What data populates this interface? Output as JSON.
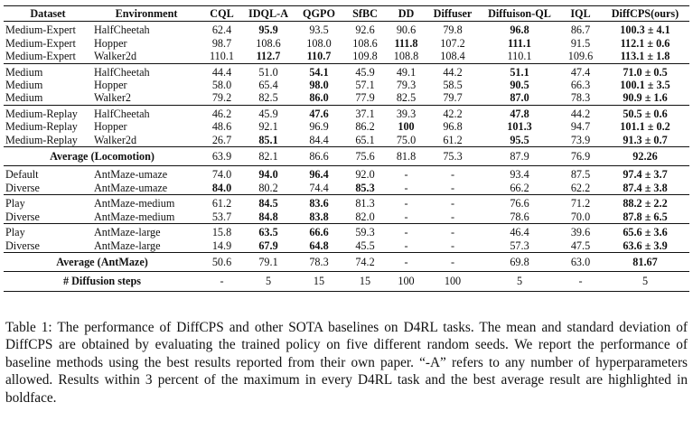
{
  "table": {
    "columns": [
      "Dataset",
      "Environment",
      "CQL",
      "IDQL-A",
      "QGPO",
      "SfBC",
      "DD",
      "Diffuser",
      "Diffuison-QL",
      "IQL",
      "DiffCPS(ours)"
    ],
    "rows": [
      {
        "dataset": "Medium-Expert",
        "env": "HalfCheetah",
        "cells": [
          "62.4",
          "95.9",
          "93.5",
          "92.6",
          "90.6",
          "79.8",
          "96.8",
          "86.7",
          "100.3 ± 4.1"
        ],
        "bold": [
          false,
          true,
          false,
          false,
          false,
          false,
          true,
          false,
          true
        ],
        "cls": "gap-top"
      },
      {
        "dataset": "Medium-Expert",
        "env": "Hopper",
        "cells": [
          "98.7",
          "108.6",
          "108.0",
          "108.6",
          "111.8",
          "107.2",
          "111.1",
          "91.5",
          "112.1 ± 0.6"
        ],
        "bold": [
          false,
          false,
          false,
          false,
          true,
          false,
          true,
          false,
          true
        ],
        "cls": ""
      },
      {
        "dataset": "Medium-Expert",
        "env": "Walker2d",
        "cells": [
          "110.1",
          "112.7",
          "110.7",
          "109.8",
          "108.8",
          "108.4",
          "110.1",
          "109.6",
          "113.1 ± 1.8"
        ],
        "bold": [
          false,
          true,
          true,
          false,
          false,
          false,
          false,
          false,
          true
        ],
        "cls": "sep"
      },
      {
        "dataset": "Medium",
        "env": "HalfCheetah",
        "cells": [
          "44.4",
          "51.0",
          "54.1",
          "45.9",
          "49.1",
          "44.2",
          "51.1",
          "47.4",
          "71.0 ± 0.5"
        ],
        "bold": [
          false,
          false,
          true,
          false,
          false,
          false,
          true,
          false,
          true
        ],
        "cls": "gap-top"
      },
      {
        "dataset": "Medium",
        "env": "Hopper",
        "cells": [
          "58.0",
          "65.4",
          "98.0",
          "57.1",
          "79.3",
          "58.5",
          "90.5",
          "66.3",
          "100.1 ± 3.5"
        ],
        "bold": [
          false,
          false,
          true,
          false,
          false,
          false,
          true,
          false,
          true
        ],
        "cls": ""
      },
      {
        "dataset": "Medium",
        "env": "Walker2",
        "cells": [
          "79.2",
          "82.5",
          "86.0",
          "77.9",
          "82.5",
          "79.7",
          "87.0",
          "78.3",
          "90.9 ± 1.6"
        ],
        "bold": [
          false,
          false,
          true,
          false,
          false,
          false,
          true,
          false,
          true
        ],
        "cls": "sep"
      },
      {
        "dataset": "Medium-Replay",
        "env": "HalfCheetah",
        "cells": [
          "46.2",
          "45.9",
          "47.6",
          "37.1",
          "39.3",
          "42.2",
          "47.8",
          "44.2",
          "50.5 ± 0.6"
        ],
        "bold": [
          false,
          false,
          true,
          false,
          false,
          false,
          true,
          false,
          true
        ],
        "cls": "gap-top"
      },
      {
        "dataset": "Medium-Replay",
        "env": "Hopper",
        "cells": [
          "48.6",
          "92.1",
          "96.9",
          "86.2",
          "100",
          "96.8",
          "101.3",
          "94.7",
          "101.1 ± 0.2"
        ],
        "bold": [
          false,
          false,
          false,
          false,
          true,
          false,
          true,
          false,
          true
        ],
        "cls": ""
      },
      {
        "dataset": "Medium-Replay",
        "env": "Walker2d",
        "cells": [
          "26.7",
          "85.1",
          "84.4",
          "65.1",
          "75.0",
          "61.2",
          "95.5",
          "73.9",
          "91.3 ± 0.7"
        ],
        "bold": [
          false,
          true,
          false,
          false,
          false,
          false,
          true,
          false,
          true
        ],
        "cls": "sep"
      }
    ],
    "avg_locomotion": {
      "label": "Average (Locomotion)",
      "cells": [
        "63.9",
        "82.1",
        "86.6",
        "75.6",
        "81.8",
        "75.3",
        "87.9",
        "76.9",
        "92.26"
      ],
      "bold": [
        false,
        false,
        false,
        false,
        false,
        false,
        false,
        false,
        true
      ]
    },
    "antmaze_rows": [
      {
        "dataset": "Default",
        "env": "AntMaze-umaze",
        "cells": [
          "74.0",
          "94.0",
          "96.4",
          "92.0",
          "-",
          "-",
          "93.4",
          "87.5",
          "97.4 ± 3.7"
        ],
        "bold": [
          false,
          true,
          true,
          false,
          false,
          false,
          false,
          false,
          true
        ],
        "cls": "gap-top"
      },
      {
        "dataset": "Diverse",
        "env": "AntMaze-umaze",
        "cells": [
          "84.0",
          "80.2",
          "74.4",
          "85.3",
          "-",
          "-",
          "66.2",
          "62.2",
          "87.4 ± 3.8"
        ],
        "bold": [
          true,
          false,
          false,
          true,
          false,
          false,
          false,
          false,
          true
        ],
        "cls": "sep"
      },
      {
        "dataset": "Play",
        "env": "AntMaze-medium",
        "cells": [
          "61.2",
          "84.5",
          "83.6",
          "81.3",
          "-",
          "-",
          "76.6",
          "71.2",
          "88.2 ± 2.2"
        ],
        "bold": [
          false,
          true,
          true,
          false,
          false,
          false,
          false,
          false,
          true
        ],
        "cls": "gap-top"
      },
      {
        "dataset": "Diverse",
        "env": "AntMaze-medium",
        "cells": [
          "53.7",
          "84.8",
          "83.8",
          "82.0",
          "-",
          "-",
          "78.6",
          "70.0",
          "87.8 ± 6.5"
        ],
        "bold": [
          false,
          true,
          true,
          false,
          false,
          false,
          false,
          false,
          true
        ],
        "cls": "sep"
      },
      {
        "dataset": "Play",
        "env": "AntMaze-large",
        "cells": [
          "15.8",
          "63.5",
          "66.6",
          "59.3",
          "-",
          "-",
          "46.4",
          "39.6",
          "65.6 ± 3.6"
        ],
        "bold": [
          false,
          true,
          true,
          false,
          false,
          false,
          false,
          false,
          true
        ],
        "cls": "gap-top"
      },
      {
        "dataset": "Diverse",
        "env": "AntMaze-large",
        "cells": [
          "14.9",
          "67.9",
          "64.8",
          "45.5",
          "-",
          "-",
          "57.3",
          "47.5",
          "63.6 ± 3.9"
        ],
        "bold": [
          false,
          true,
          true,
          false,
          false,
          false,
          false,
          false,
          true
        ],
        "cls": "sep"
      }
    ],
    "avg_antmaze": {
      "label": "Average (AntMaze)",
      "cells": [
        "50.6",
        "79.1",
        "78.3",
        "74.2",
        "-",
        "-",
        "69.8",
        "63.0",
        "81.67"
      ],
      "bold": [
        false,
        false,
        false,
        false,
        false,
        false,
        false,
        false,
        true
      ]
    },
    "steps": {
      "label": "# Diffusion steps",
      "cells": [
        "-",
        "5",
        "15",
        "15",
        "100",
        "100",
        "5",
        "-",
        "5"
      ],
      "bold": [
        false,
        false,
        false,
        false,
        false,
        false,
        false,
        false,
        false
      ]
    }
  },
  "caption": "Table 1: The performance of DiffCPS and other SOTA baselines on D4RL tasks. The mean and standard deviation of DiffCPS are obtained by evaluating the trained policy on five different random seeds. We report the performance of baseline methods using the best results reported from their own paper. “-A” refers to any number of hyperparameters allowed. Results within 3 percent of the maximum in every D4RL task and the best average result are highlighted in boldface."
}
